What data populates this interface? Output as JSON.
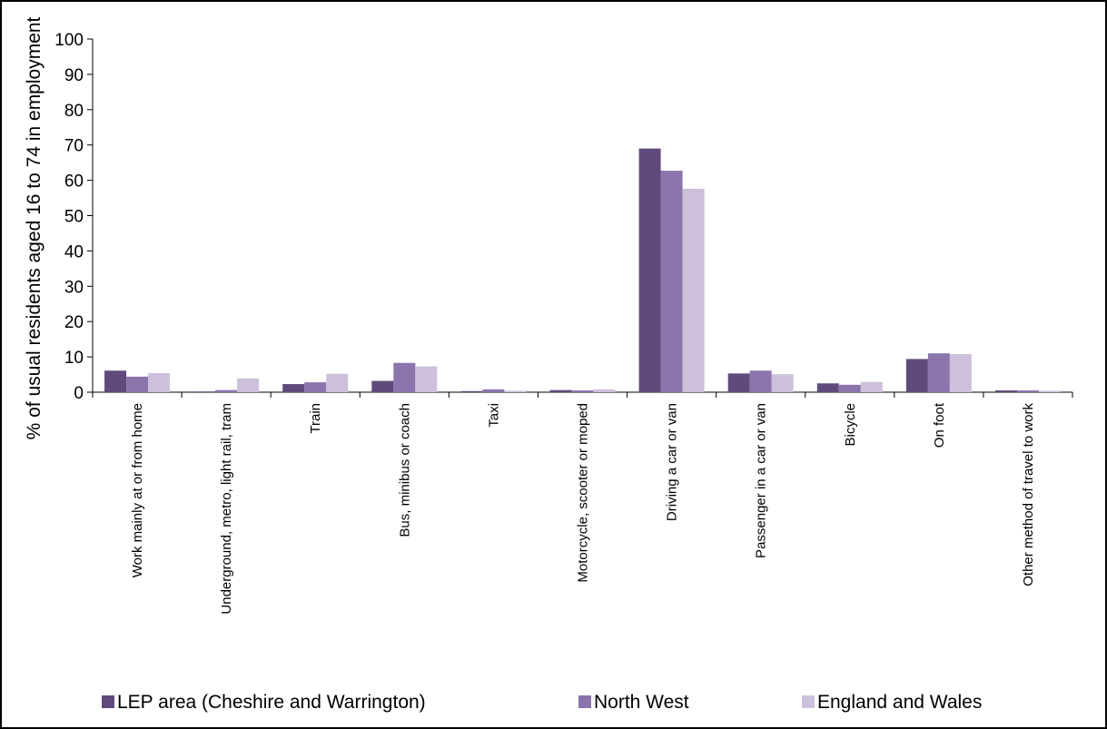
{
  "chart_data": {
    "type": "bar",
    "ylabel": "% of usual residents aged 16 to 74 in employment",
    "xlabel": "",
    "ylim": [
      0,
      100
    ],
    "ytick_step": 10,
    "grid": false,
    "legend_position": "bottom",
    "categories": [
      "Work mainly at or from home",
      "Underground, metro, light rail, tram",
      "Train",
      "Bus, minibus or coach",
      "Taxi",
      "Motorcycle, scooter or moped",
      "Driving a car or van",
      "Passenger in a car or van",
      "Bicycle",
      "On foot",
      "Other method of travel to work"
    ],
    "series": [
      {
        "name": "LEP area (Cheshire and Warrington)",
        "color": "#604a7b",
        "values": [
          6.1,
          0.2,
          2.3,
          3.2,
          0.3,
          0.6,
          69.0,
          5.3,
          2.5,
          9.4,
          0.5
        ]
      },
      {
        "name": "North West",
        "color": "#8c74ad",
        "values": [
          4.4,
          0.6,
          2.8,
          8.3,
          0.8,
          0.5,
          62.7,
          6.1,
          2.1,
          11.0,
          0.5
        ]
      },
      {
        "name": "England and Wales",
        "color": "#ccc0da",
        "values": [
          5.4,
          3.9,
          5.2,
          7.3,
          0.4,
          0.8,
          57.6,
          5.1,
          2.9,
          10.8,
          0.4
        ]
      }
    ]
  }
}
